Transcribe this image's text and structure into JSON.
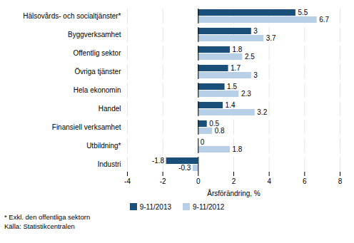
{
  "chart_data": {
    "type": "bar",
    "orientation": "horizontal",
    "categories": [
      "Hälsovårds- och socialtjänster*",
      "Byggverksamhet",
      "Offentlig sektor",
      "Övriga tjänster",
      "Hela ekonomin",
      "Handel",
      "Finansiell verksamhet",
      "Utbildning*",
      "Industri"
    ],
    "series": [
      {
        "name": "9-11/2013",
        "color": "#1a4f7a",
        "values": [
          5.5,
          3.0,
          1.8,
          1.7,
          1.5,
          1.4,
          0.5,
          0.0,
          -1.8
        ]
      },
      {
        "name": "9-11/2012",
        "color": "#b8cfe8",
        "values": [
          6.7,
          3.7,
          2.5,
          3.0,
          2.3,
          3.2,
          0.8,
          1.8,
          -0.3
        ]
      }
    ],
    "xlabel": "Årsförändring, %",
    "xlim": [
      -4,
      8
    ],
    "xticks": [
      -4,
      -2,
      0,
      2,
      4,
      6,
      8
    ],
    "grid": true,
    "data_labels": true,
    "legend": "bottom",
    "footnotes": [
      "* Exkl. den offentliga sektorn",
      "Källa: Statistikcentralen"
    ]
  }
}
